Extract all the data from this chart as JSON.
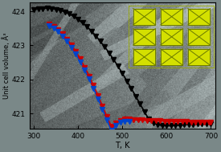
{
  "title": "",
  "xlabel": "T, K",
  "ylabel": "Unit cell volume, Å³",
  "xlim": [
    290,
    710
  ],
  "ylim": [
    420.55,
    424.25
  ],
  "yticks": [
    421,
    422,
    423,
    424
  ],
  "xticks": [
    300,
    400,
    500,
    600,
    700
  ],
  "black_T": [
    300,
    310,
    320,
    330,
    340,
    350,
    360,
    370,
    380,
    390,
    400,
    410,
    420,
    430,
    440,
    450,
    460,
    470,
    480,
    490,
    500,
    510,
    520,
    530,
    540,
    550,
    560,
    570,
    580,
    590,
    600,
    610,
    620,
    630,
    640,
    650,
    660,
    670,
    680,
    690,
    700
  ],
  "black_V": [
    424.05,
    424.07,
    424.08,
    424.09,
    424.08,
    424.06,
    424.03,
    423.98,
    423.92,
    423.85,
    423.76,
    423.66,
    423.55,
    423.42,
    423.28,
    423.12,
    422.96,
    422.78,
    422.59,
    422.39,
    422.18,
    421.96,
    421.74,
    421.51,
    421.28,
    421.05,
    420.83,
    420.72,
    420.67,
    420.65,
    420.64,
    420.64,
    420.65,
    420.66,
    420.67,
    420.68,
    420.68,
    420.69,
    420.69,
    420.69,
    420.7
  ],
  "red_T": [
    335,
    345,
    355,
    365,
    375,
    385,
    395,
    405,
    415,
    425,
    435,
    445,
    455,
    465,
    475,
    485,
    495,
    505,
    515,
    525,
    535,
    545,
    555,
    565,
    575,
    585,
    595,
    605,
    615,
    625,
    635,
    645,
    655,
    665,
    675,
    685,
    695,
    700
  ],
  "red_V": [
    423.62,
    423.55,
    423.45,
    423.33,
    423.18,
    423.01,
    422.82,
    422.6,
    422.36,
    422.1,
    421.82,
    421.53,
    421.22,
    420.91,
    420.62,
    420.73,
    420.8,
    420.83,
    420.83,
    420.82,
    420.81,
    420.81,
    420.8,
    420.8,
    420.79,
    420.79,
    420.78,
    420.78,
    420.77,
    420.77,
    420.76,
    420.76,
    420.75,
    420.75,
    420.75,
    420.74,
    420.74,
    420.74
  ],
  "blue_T": [
    335,
    345,
    355,
    365,
    375,
    385,
    395,
    405,
    415,
    425,
    435,
    445,
    455,
    465,
    475,
    485,
    495,
    505,
    515
  ],
  "blue_V": [
    423.58,
    423.5,
    423.4,
    423.27,
    423.12,
    422.94,
    422.74,
    422.52,
    422.27,
    422.01,
    421.73,
    421.44,
    421.13,
    420.82,
    420.5,
    420.65,
    420.75,
    420.78,
    420.77
  ],
  "bg_colors": [
    "#6a7a7a",
    "#7a8a8a",
    "#5a6a6a",
    "#8a9898",
    "#4a5a5a"
  ],
  "inset_yellow": "#d4e000",
  "inset_dark": "#8a9900",
  "inset_line": "#6a7800",
  "marker_size": 4.5,
  "line_width": 1.2
}
